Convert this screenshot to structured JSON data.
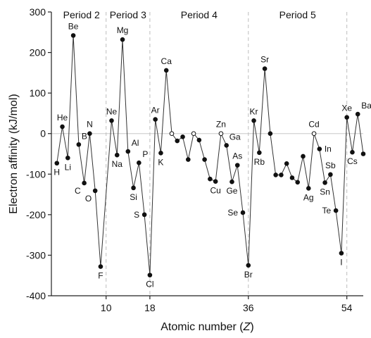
{
  "chart_data": {
    "type": "line",
    "xlabel_main": "Atomic number (",
    "xlabel_var": "Z",
    "xlabel_end": ")",
    "ylabel": "Electron affinity (kJ/mol)",
    "xlim": [
      0,
      57
    ],
    "ylim": [
      -400,
      300
    ],
    "x_ticks": [
      10,
      18,
      36,
      54
    ],
    "y_ticks": [
      -400,
      -300,
      -200,
      -100,
      0,
      100,
      200,
      300
    ],
    "zero_line": true,
    "period_boundaries": [
      10,
      18,
      36,
      54
    ],
    "periods": [
      {
        "label": "Period 2",
        "x_center": 5.5
      },
      {
        "label": "Period 3",
        "x_center": 14
      },
      {
        "label": "Period 4",
        "x_center": 27
      },
      {
        "label": "Period 5",
        "x_center": 45
      }
    ],
    "series": [
      {
        "points": [
          {
            "z": 1,
            "v": -73,
            "label": "H",
            "pos": "below"
          },
          {
            "z": 2,
            "v": 17,
            "label": "He",
            "pos": "above"
          },
          {
            "z": 3,
            "v": -60,
            "label": "Li",
            "pos": "below"
          },
          {
            "z": 4,
            "v": 242,
            "label": "Be",
            "pos": "above"
          },
          {
            "z": 5,
            "v": -27,
            "label": "B",
            "pos": "right-up"
          },
          {
            "z": 6,
            "v": -122,
            "label": "C",
            "pos": "below-left"
          },
          {
            "z": 7,
            "v": 0,
            "label": "N",
            "pos": "above"
          },
          {
            "z": 8,
            "v": -141,
            "label": "O",
            "pos": "below-left"
          },
          {
            "z": 9,
            "v": -328,
            "label": "F",
            "pos": "below"
          },
          {
            "z": 11,
            "v": 32,
            "label": "Ne",
            "pos": "above"
          },
          {
            "z": 12,
            "v": -53,
            "label": "Na",
            "pos": "below"
          },
          {
            "z": 13,
            "v": 232,
            "label": "Mg",
            "pos": "above"
          },
          {
            "z": 14,
            "v": -44,
            "label": "Al",
            "pos": "above-right"
          },
          {
            "z": 15,
            "v": -134,
            "label": "Si",
            "pos": "below"
          },
          {
            "z": 16,
            "v": -72,
            "label": "P",
            "pos": "above-right"
          },
          {
            "z": 17,
            "v": -200,
            "label": "S",
            "pos": "left"
          },
          {
            "z": 18,
            "v": -349,
            "label": "Cl",
            "pos": "below"
          },
          {
            "z": 19,
            "v": 35,
            "label": "Ar",
            "pos": "above"
          },
          {
            "z": 20,
            "v": -48,
            "label": "K",
            "pos": "below"
          },
          {
            "z": 21,
            "v": 156,
            "label": "Ca",
            "pos": "above"
          },
          {
            "z": 22,
            "v": 0,
            "open": true
          },
          {
            "z": 23,
            "v": -18
          },
          {
            "z": 24,
            "v": -8
          },
          {
            "z": 25,
            "v": -64
          },
          {
            "z": 26,
            "v": 0,
            "open": true
          },
          {
            "z": 27,
            "v": -16
          },
          {
            "z": 28,
            "v": -64
          },
          {
            "z": 29,
            "v": -112
          },
          {
            "z": 30,
            "v": -118,
            "label": "Cu",
            "pos": "below"
          },
          {
            "z": 31,
            "v": 0,
            "label": "Zn",
            "pos": "above",
            "open": true
          },
          {
            "z": 32,
            "v": -29,
            "label": "Ga",
            "pos": "right-up"
          },
          {
            "z": 33,
            "v": -119,
            "label": "Ge",
            "pos": "below"
          },
          {
            "z": 34,
            "v": -78,
            "label": "As",
            "pos": "above"
          },
          {
            "z": 35,
            "v": -195,
            "label": "Se",
            "pos": "left"
          },
          {
            "z": 36,
            "v": -325,
            "label": "Br",
            "pos": "below"
          },
          {
            "z": 37,
            "v": 32,
            "label": "Kr",
            "pos": "above"
          },
          {
            "z": 38,
            "v": -47,
            "label": "Rb",
            "pos": "below"
          },
          {
            "z": 39,
            "v": 160,
            "label": "Sr",
            "pos": "above"
          },
          {
            "z": 40,
            "v": 0
          },
          {
            "z": 41,
            "v": -102
          },
          {
            "z": 42,
            "v": -102
          },
          {
            "z": 43,
            "v": -74
          },
          {
            "z": 44,
            "v": -109
          },
          {
            "z": 45,
            "v": -120
          },
          {
            "z": 46,
            "v": -56
          },
          {
            "z": 47,
            "v": -135,
            "label": "Ag",
            "pos": "below"
          },
          {
            "z": 48,
            "v": 0,
            "label": "Cd",
            "pos": "above",
            "open": true
          },
          {
            "z": 49,
            "v": -38,
            "label": "In",
            "pos": "right"
          },
          {
            "z": 50,
            "v": -121,
            "label": "Sn",
            "pos": "below"
          },
          {
            "z": 51,
            "v": -101,
            "label": "Sb",
            "pos": "above"
          },
          {
            "z": 52,
            "v": -190,
            "label": "Te",
            "pos": "left"
          },
          {
            "z": 53,
            "v": -295,
            "label": "I",
            "pos": "below"
          },
          {
            "z": 54,
            "v": 40,
            "label": "Xe",
            "pos": "above"
          },
          {
            "z": 55,
            "v": -46,
            "label": "Cs",
            "pos": "below"
          },
          {
            "z": 56,
            "v": 48,
            "label": "Ba",
            "pos": "above-right"
          },
          {
            "z": 57,
            "v": -50
          }
        ]
      }
    ]
  }
}
